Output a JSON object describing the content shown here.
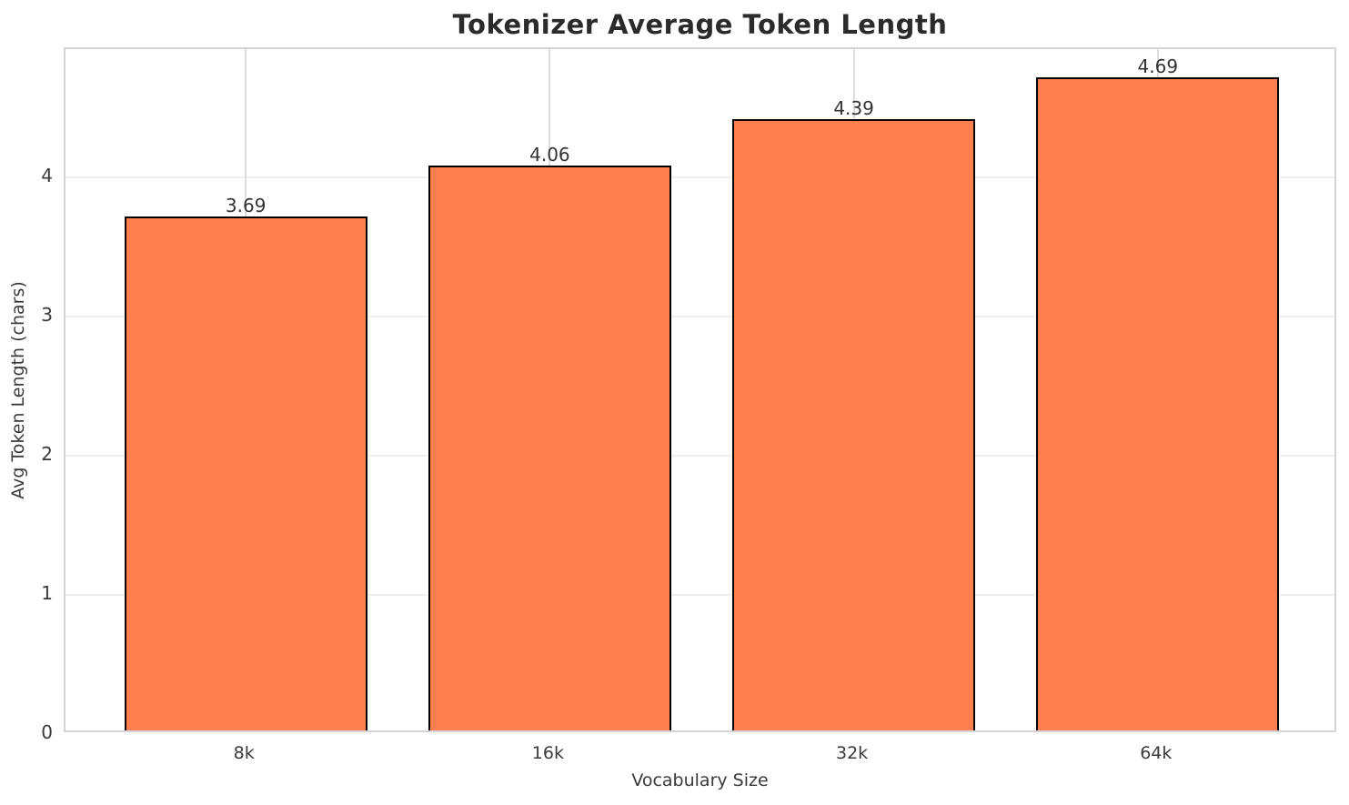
{
  "chart_data": {
    "type": "bar",
    "title": "Tokenizer Average Token Length",
    "xlabel": "Vocabulary Size",
    "ylabel": "Avg Token Length (chars)",
    "categories": [
      "8k",
      "16k",
      "32k",
      "64k"
    ],
    "values": [
      3.69,
      4.06,
      4.39,
      4.69
    ],
    "value_labels": [
      "3.69",
      "4.06",
      "4.39",
      "4.69"
    ],
    "ytick_labels": [
      "0",
      "1",
      "2",
      "3",
      "4"
    ],
    "ytick_values": [
      0,
      1,
      2,
      3,
      4
    ],
    "ylim": [
      0,
      4.92
    ],
    "grid": true,
    "legend_position": "none",
    "colors": {
      "bar_fill": "#FF7F50",
      "bar_edge": "#000000",
      "title_text": "#2b2b2b",
      "axis_text": "#3a3a3a",
      "spine": "#d5d5d5",
      "grid_horizontal": "#efefef",
      "grid_vertical": "#dcdcdc",
      "background": "#ffffff"
    }
  }
}
